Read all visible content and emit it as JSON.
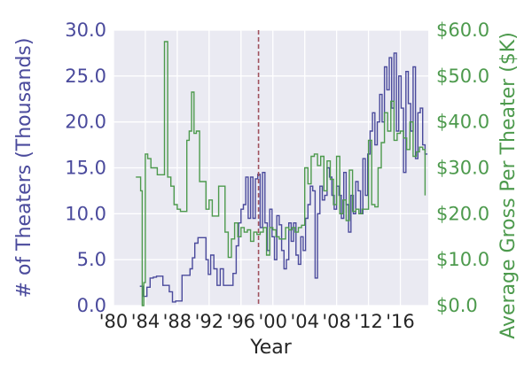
{
  "chart_data": {
    "type": "line",
    "title": "",
    "xlabel": "Year",
    "ylabel_left": "# of Theaters (Thousands)",
    "ylabel_right": "Average Gross Per Theater ($K)",
    "xlim": [
      1980,
      2019.5
    ],
    "ylim_left": [
      0,
      30
    ],
    "ylim_right": [
      0,
      60
    ],
    "x_ticks": [
      {
        "value": 1980,
        "label": "'80"
      },
      {
        "value": 1984,
        "label": "'84"
      },
      {
        "value": 1988,
        "label": "'88"
      },
      {
        "value": 1992,
        "label": "'92"
      },
      {
        "value": 1996,
        "label": "'96"
      },
      {
        "value": 2000,
        "label": "'00"
      },
      {
        "value": 2004,
        "label": "'04"
      },
      {
        "value": 2008,
        "label": "'08"
      },
      {
        "value": 2012,
        "label": "'12"
      },
      {
        "value": 2016,
        "label": "'16"
      }
    ],
    "y_ticks_left": [
      {
        "value": 0,
        "label": "0.0"
      },
      {
        "value": 5,
        "label": "5.0"
      },
      {
        "value": 10,
        "label": "10.0"
      },
      {
        "value": 15,
        "label": "15.0"
      },
      {
        "value": 20,
        "label": "20.0"
      },
      {
        "value": 25,
        "label": "25.0"
      },
      {
        "value": 30,
        "label": "30.0"
      }
    ],
    "y_ticks_right": [
      {
        "value": 0,
        "label": "$0.0"
      },
      {
        "value": 10,
        "label": "$10.0"
      },
      {
        "value": 20,
        "label": "$20.0"
      },
      {
        "value": 30,
        "label": "$30.0"
      },
      {
        "value": 40,
        "label": "$40.0"
      },
      {
        "value": 50,
        "label": "$50.0"
      },
      {
        "value": 60,
        "label": "$60.0"
      }
    ],
    "grid": true,
    "vline": {
      "x": 1998.2
    },
    "series": [
      {
        "axis": "left",
        "color": "#4a4a9c",
        "style": "step",
        "x": [
          1983.3,
          1983.5,
          1983.7,
          1984.2,
          1984.6,
          1985,
          1985.4,
          1985.8,
          1986.2,
          1986.6,
          1987,
          1987.4,
          1987.8,
          1988.2,
          1988.6,
          1989,
          1989.3,
          1989.6,
          1989.9,
          1990.2,
          1990.6,
          1991,
          1991.3,
          1991.6,
          1991.9,
          1992.2,
          1992.6,
          1993,
          1993.4,
          1993.8,
          1994.2,
          1994.6,
          1995,
          1995.4,
          1995.7,
          1996,
          1996.3,
          1996.6,
          1996.9,
          1997.2,
          1997.5,
          1997.8,
          1998.1,
          1998.4,
          1998.7,
          1999,
          1999.3,
          1999.6,
          1999.9,
          2000.2,
          2000.5,
          2000.8,
          2001.1,
          2001.4,
          2001.7,
          2002,
          2002.3,
          2002.6,
          2002.9,
          2003.2,
          2003.5,
          2003.8,
          2004.1,
          2004.4,
          2004.7,
          2005,
          2005.3,
          2005.6,
          2005.9,
          2006.2,
          2006.5,
          2006.8,
          2007.1,
          2007.4,
          2007.7,
          2008,
          2008.3,
          2008.6,
          2008.9,
          2009.2,
          2009.5,
          2009.8,
          2010.1,
          2010.4,
          2010.7,
          2011,
          2011.3,
          2011.6,
          2011.9,
          2012.2,
          2012.5,
          2012.8,
          2013.1,
          2013.4,
          2013.7,
          2014,
          2014.3,
          2014.6,
          2014.9,
          2015.2,
          2015.5,
          2015.8,
          2016.1,
          2016.4,
          2016.7,
          2017,
          2017.3,
          2017.6,
          2017.9,
          2018.2,
          2018.5,
          2018.8,
          2019.1,
          2019.4
        ],
        "values": [
          2.1,
          2.1,
          1.0,
          2.0,
          3.0,
          3.1,
          3.2,
          3.2,
          2.2,
          2.2,
          1.5,
          0.4,
          0.5,
          0.5,
          3.3,
          3.3,
          3.3,
          4.0,
          5.2,
          6.8,
          7.4,
          7.4,
          7.4,
          5.0,
          3.4,
          5.5,
          4.0,
          2.2,
          4.0,
          2.2,
          2.2,
          2.2,
          3.5,
          6.5,
          9.0,
          10.5,
          11.0,
          14.0,
          9.5,
          14.0,
          9.5,
          13.8,
          14.3,
          8.5,
          14.5,
          9.0,
          6.0,
          10.5,
          7.5,
          5.0,
          9.8,
          8.8,
          6.0,
          4.0,
          5.0,
          9.0,
          7.0,
          9.0,
          5.5,
          4.5,
          7.5,
          6.0,
          9.5,
          11.0,
          13.0,
          12.5,
          3.0,
          10.0,
          13.0,
          11.5,
          12.0,
          15.0,
          14.0,
          12.0,
          10.5,
          13.0,
          12.0,
          9.5,
          14.5,
          11.0,
          8.0,
          12.0,
          10.0,
          13.5,
          12.5,
          10.0,
          16.0,
          12.0,
          16.5,
          19.0,
          21.0,
          17.5,
          20.0,
          23.0,
          20.0,
          26.0,
          23.5,
          27.0,
          21.5,
          27.5,
          19.0,
          25.0,
          21.5,
          14.5,
          25.5,
          22.0,
          19.0,
          26.0,
          16.0,
          21.0,
          21.5,
          17.5,
          16.5,
          16.5
        ]
      },
      {
        "axis": "right",
        "color": "#4d9a4d",
        "style": "step",
        "x": [
          1982.8,
          1983.4,
          1983.6,
          1983.8,
          1984,
          1984.3,
          1984.7,
          1985.1,
          1985.5,
          1986,
          1986.4,
          1986.8,
          1987.2,
          1987.6,
          1988,
          1988.4,
          1988.8,
          1989.2,
          1989.5,
          1989.8,
          1990.1,
          1990.4,
          1990.8,
          1991.2,
          1991.6,
          1992,
          1992.4,
          1992.8,
          1993.2,
          1993.6,
          1994,
          1994.4,
          1994.8,
          1995.2,
          1995.6,
          1996,
          1996.4,
          1996.8,
          1997.2,
          1997.6,
          1998,
          1998.4,
          1998.8,
          1999.2,
          1999.6,
          2000,
          2000.4,
          2000.8,
          2001.2,
          2001.6,
          2002,
          2002.4,
          2002.8,
          2003.2,
          2003.6,
          2004,
          2004.4,
          2004.8,
          2005.2,
          2005.6,
          2006,
          2006.4,
          2006.8,
          2007.2,
          2007.6,
          2008,
          2008.4,
          2008.8,
          2009.2,
          2009.6,
          2010,
          2010.4,
          2010.8,
          2011.2,
          2011.6,
          2012,
          2012.4,
          2012.8,
          2013.2,
          2013.6,
          2014,
          2014.4,
          2014.8,
          2015.2,
          2015.6,
          2016,
          2016.4,
          2016.8,
          2017.2,
          2017.6,
          2018,
          2018.4,
          2018.8,
          2019.1
        ],
        "values": [
          28.0,
          25.0,
          0.0,
          5.0,
          33.0,
          32.0,
          30.0,
          30.0,
          28.5,
          28.5,
          57.5,
          28.0,
          26.0,
          22.0,
          21.0,
          20.5,
          20.5,
          36.0,
          38.0,
          46.5,
          37.5,
          38.0,
          27.0,
          27.0,
          21.0,
          23.0,
          19.5,
          19.5,
          26.0,
          26.0,
          16.0,
          10.5,
          14.5,
          18.0,
          15.0,
          17.0,
          16.0,
          16.5,
          14.0,
          16.0,
          15.5,
          16.0,
          17.0,
          11.0,
          17.0,
          16.5,
          15.0,
          14.5,
          14.5,
          17.0,
          16.5,
          17.0,
          16.0,
          17.0,
          17.5,
          30.0,
          26.5,
          32.5,
          33.0,
          30.5,
          32.5,
          25.0,
          31.5,
          27.5,
          22.0,
          32.5,
          20.0,
          23.0,
          18.5,
          29.5,
          20.5,
          21.0,
          20.0,
          21.0,
          21.0,
          36.0,
          22.0,
          21.5,
          30.0,
          35.5,
          42.0,
          38.0,
          44.5,
          36.0,
          37.5,
          38.0,
          36.5,
          34.0,
          40.0,
          32.5,
          33.5,
          34.5,
          34.0,
          24.0
        ]
      }
    ]
  }
}
